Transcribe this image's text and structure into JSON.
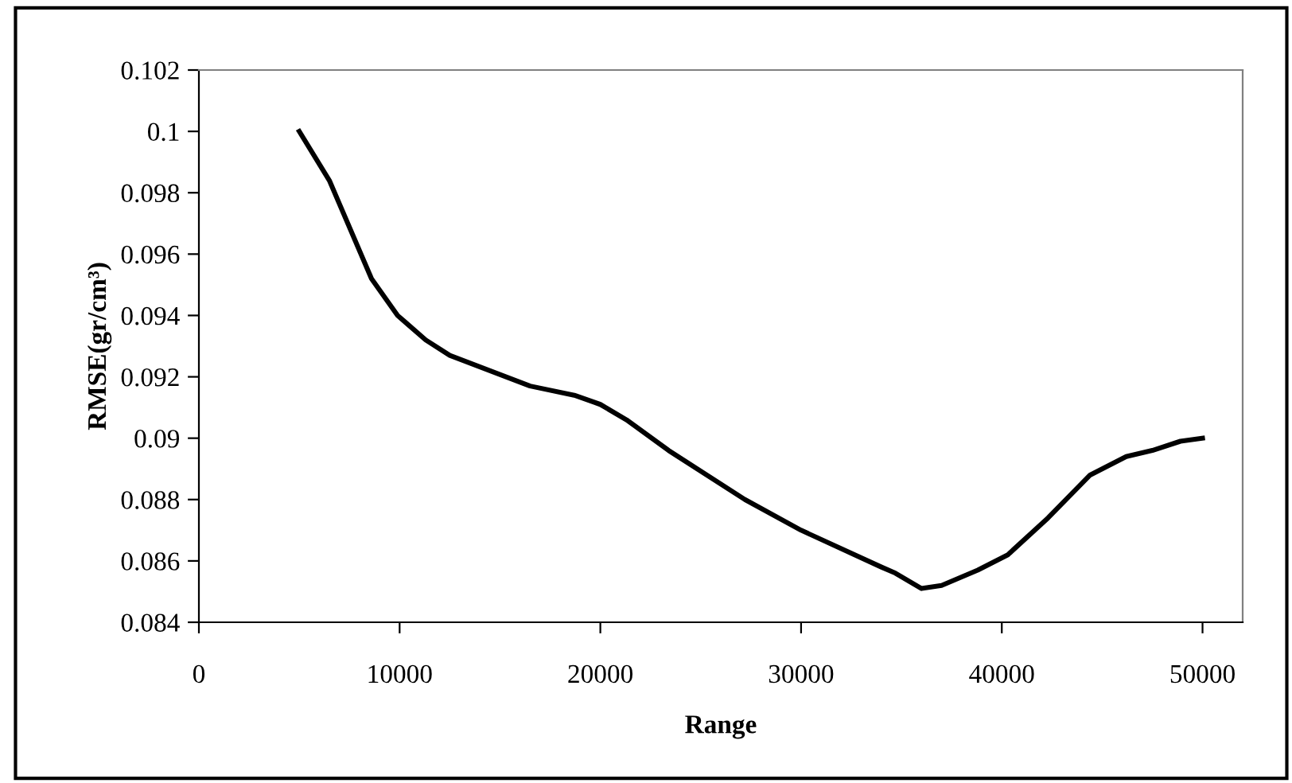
{
  "chart_data": {
    "type": "line",
    "xlabel": "Range",
    "ylabel": "RMSE(gr/cm³)",
    "series": [
      {
        "color": "#000000",
        "x": [
          5000,
          6500,
          8600,
          9900,
          11300,
          12500,
          16500,
          18700,
          20000,
          21300,
          23400,
          27200,
          30000,
          34000,
          34700,
          36000,
          37000,
          38800,
          40300,
          42300,
          44400,
          46200,
          47500,
          48900,
          50000
        ],
        "values": [
          0.1,
          0.0984,
          0.0952,
          0.094,
          0.0932,
          0.0927,
          0.0917,
          0.0914,
          0.0911,
          0.0906,
          0.0896,
          0.088,
          0.087,
          0.0858,
          0.0856,
          0.0851,
          0.0852,
          0.0857,
          0.0862,
          0.0874,
          0.0888,
          0.0894,
          0.0896,
          0.0899,
          0.09
        ]
      }
    ],
    "xlim": [
      0,
      52000
    ],
    "xticks": [
      0,
      10000,
      20000,
      30000,
      40000,
      50000
    ],
    "ylim": [
      0.084,
      0.102
    ],
    "yticks": [
      0.084,
      0.086,
      0.088,
      0.09,
      0.092,
      0.094,
      0.096,
      0.098,
      0.1,
      0.102
    ],
    "grid": false,
    "legend": false,
    "marker": "none",
    "line_style": "solid"
  }
}
